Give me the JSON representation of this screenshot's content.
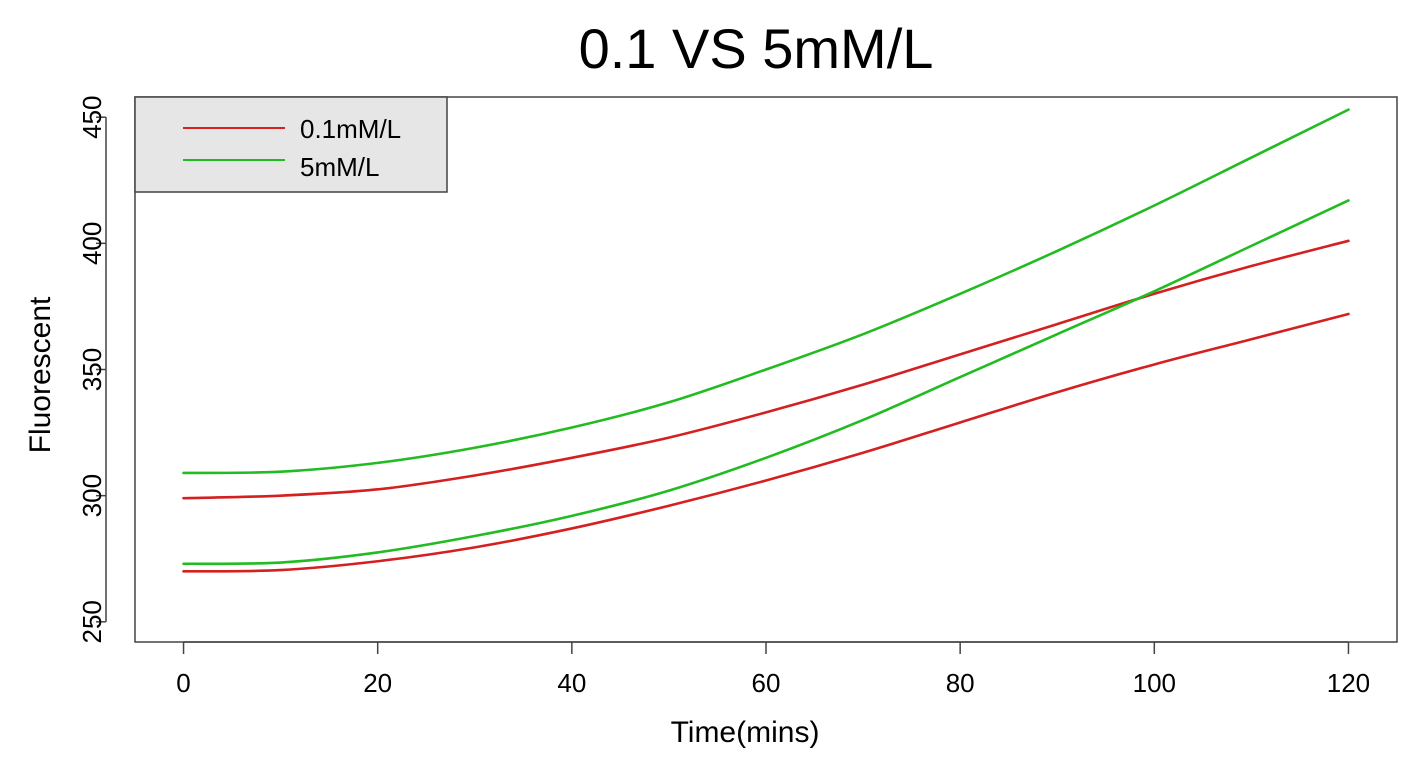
{
  "chart_data": {
    "type": "line",
    "title": "0.1 VS 5mM/L",
    "xlabel": "Time(mins)",
    "ylabel": "Fluorescent",
    "xlim": [
      -5,
      125
    ],
    "ylim": [
      242,
      458
    ],
    "x_ticks": [
      "0",
      "20",
      "40",
      "60",
      "80",
      "100",
      "120"
    ],
    "y_ticks": [
      "250",
      "300",
      "350",
      "400",
      "450"
    ],
    "grid": false,
    "legend": {
      "position": "top-left",
      "background": "#e6e6e6",
      "entries": [
        {
          "label": "0.1mM/L",
          "color": "#d42020"
        },
        {
          "label": "5mM/L",
          "color": "#22bb22"
        }
      ]
    },
    "x": [
      0,
      10,
      20,
      30,
      40,
      50,
      60,
      70,
      80,
      90,
      100,
      110,
      120
    ],
    "series": [
      {
        "legend": "0.1mM/L",
        "color": "#d42020",
        "values": [
          299,
          300,
          302.5,
          308,
          315,
          323,
          333,
          344,
          356,
          368,
          380,
          391,
          401
        ]
      },
      {
        "legend": "0.1mM/L",
        "color": "#d42020",
        "values": [
          270,
          270.5,
          274,
          279.5,
          287,
          296,
          306,
          317,
          329,
          341,
          352,
          362,
          372
        ]
      },
      {
        "legend": "5mM/L",
        "color": "#22bb22",
        "values": [
          309,
          309.5,
          313,
          319,
          327,
          337,
          350,
          364,
          380,
          397,
          415,
          434,
          453
        ]
      },
      {
        "legend": "5mM/L",
        "color": "#22bb22",
        "values": [
          273,
          273.5,
          277.5,
          284,
          292,
          302,
          315,
          330,
          347,
          364,
          381,
          399,
          417
        ]
      }
    ]
  }
}
